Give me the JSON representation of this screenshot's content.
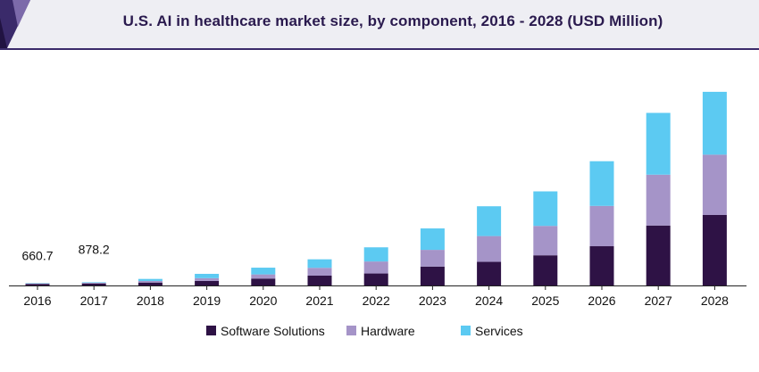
{
  "header": {
    "title": "U.S. AI in healthcare market size, by component, 2016 - 2028 (USD Million)"
  },
  "colors": {
    "software": "#2e1245",
    "hardware": "#a594c8",
    "services": "#5ccaf2",
    "header_band": "#eeeef3",
    "accent": "#3a2a6a"
  },
  "chart_data": {
    "type": "bar",
    "stacked": true,
    "categories": [
      "2016",
      "2017",
      "2018",
      "2019",
      "2020",
      "2021",
      "2022",
      "2023",
      "2024",
      "2025",
      "2026",
      "2027",
      "2028"
    ],
    "series": [
      {
        "name": "Software Solutions",
        "color": "#2e1245",
        "values": [
          420,
          540,
          800,
          1250,
          1900,
          2700,
          3300,
          5200,
          6500,
          8300,
          10800,
          16500,
          19400
        ]
      },
      {
        "name": "Hardware",
        "color": "#a594c8",
        "values": [
          140,
          190,
          440,
          760,
          1140,
          2160,
          3300,
          4600,
          7100,
          8100,
          11100,
          14000,
          16600
        ]
      },
      {
        "name": "Services",
        "color": "#5ccaf2",
        "values": [
          100,
          150,
          560,
          1190,
          1860,
          2340,
          3900,
          5900,
          8200,
          9500,
          12300,
          17000,
          17300
        ]
      }
    ],
    "data_labels": [
      {
        "category": "2016",
        "text": "660.7"
      },
      {
        "category": "2017",
        "text": "878.2"
      }
    ],
    "ylim": [
      0,
      55000
    ],
    "xlabel": "",
    "ylabel": "",
    "grid": false,
    "legend_position": "bottom"
  }
}
